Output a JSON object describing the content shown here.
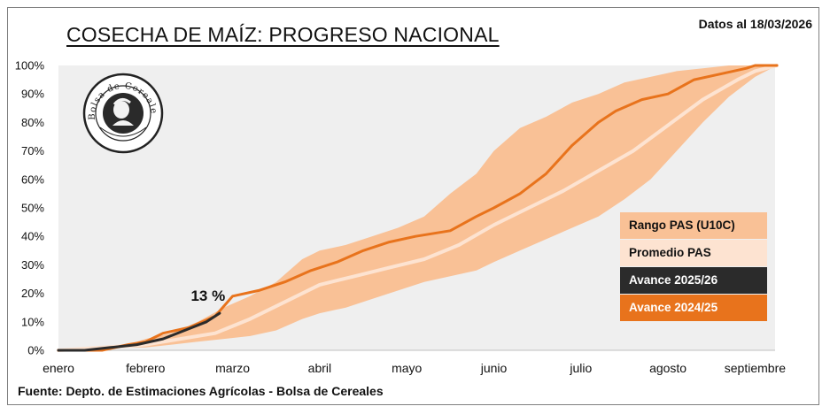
{
  "title": "COSECHA DE MAÍZ: PROGRESO NACIONAL",
  "date_note": "Datos al 18/03/2026",
  "source": "Fuente: Depto. de Estimaciones Agrícolas - Bolsa de Cereales",
  "logo": {
    "name": "Bolsa de Cereales",
    "icon": "bolsa-de-cereales-seal"
  },
  "colors": {
    "range_band": "#f9c196",
    "promedio": "#fde3d1",
    "avance_2025_26": "#2b2b2b",
    "avance_2024_25": "#e8731c",
    "plot_background": "#efefef"
  },
  "chart_data": {
    "type": "line",
    "title": "COSECHA DE MAÍZ: PROGRESO NACIONAL",
    "xlabel": "",
    "ylabel": "",
    "x_ticks": [
      "enero",
      "febrero",
      "marzo",
      "abril",
      "mayo",
      "junio",
      "julio",
      "agosto",
      "septiembre"
    ],
    "y_ticks": [
      "0%",
      "10%",
      "20%",
      "30%",
      "40%",
      "50%",
      "60%",
      "70%",
      "80%",
      "90%",
      "100%"
    ],
    "ylim": [
      0,
      100
    ],
    "x_unit": "months since start of enero (enero=0 … septiembre=8)",
    "xlim": [
      0,
      8.25
    ],
    "grid": false,
    "legend_position": "bottom-right",
    "annotation": "13 %",
    "series": [
      {
        "name": "Rango PAS (U10C)",
        "type": "band",
        "x": [
          0,
          0.4,
          0.8,
          1.0,
          1.3,
          1.6,
          1.9,
          2.2,
          2.5,
          2.8,
          3.0,
          3.3,
          3.6,
          3.9,
          4.2,
          4.5,
          4.8,
          5.0,
          5.3,
          5.6,
          5.9,
          6.2,
          6.5,
          6.8,
          7.1,
          7.4,
          7.7,
          8.0,
          8.25
        ],
        "upper": [
          0,
          1,
          2,
          4,
          6,
          10,
          15,
          19,
          24,
          32,
          35,
          37,
          40,
          43,
          47,
          55,
          62,
          70,
          78,
          82,
          87,
          90,
          94,
          96,
          98,
          99,
          100,
          100,
          100
        ],
        "lower": [
          0,
          0,
          1,
          1,
          2,
          3,
          4,
          5,
          7,
          11,
          13,
          15,
          18,
          21,
          24,
          26,
          28,
          31,
          35,
          39,
          43,
          47,
          53,
          60,
          70,
          80,
          89,
          96,
          100
        ]
      },
      {
        "name": "Promedio PAS",
        "x": [
          0,
          0.5,
          1.0,
          1.4,
          1.8,
          2.2,
          2.6,
          3.0,
          3.4,
          3.8,
          4.2,
          4.6,
          5.0,
          5.4,
          5.8,
          6.2,
          6.6,
          7.0,
          7.4,
          7.8,
          8.0,
          8.25
        ],
        "values": [
          0,
          1,
          2,
          4,
          6,
          11,
          17,
          23,
          26,
          29,
          32,
          37,
          44,
          50,
          56,
          63,
          70,
          79,
          88,
          95,
          98,
          100
        ]
      },
      {
        "name": "Avance 2025/26",
        "x": [
          0,
          0.3,
          0.6,
          0.9,
          1.2,
          1.45,
          1.7,
          1.85
        ],
        "values": [
          0,
          0,
          1,
          2,
          4,
          7,
          10,
          13
        ]
      },
      {
        "name": "Avance 2024/25",
        "x": [
          0,
          0.5,
          0.8,
          1.0,
          1.2,
          1.5,
          1.8,
          2.0,
          2.3,
          2.6,
          2.9,
          3.2,
          3.5,
          3.8,
          4.1,
          4.5,
          4.8,
          5.0,
          5.3,
          5.6,
          5.9,
          6.2,
          6.4,
          6.7,
          7.0,
          7.3,
          7.6,
          7.9,
          8.0,
          8.25
        ],
        "values": [
          0,
          0,
          2,
          3,
          6,
          8,
          12,
          19,
          21,
          24,
          28,
          31,
          35,
          38,
          40,
          42,
          47,
          50,
          55,
          62,
          72,
          80,
          84,
          88,
          90,
          95,
          97,
          99,
          100,
          100
        ]
      }
    ]
  }
}
